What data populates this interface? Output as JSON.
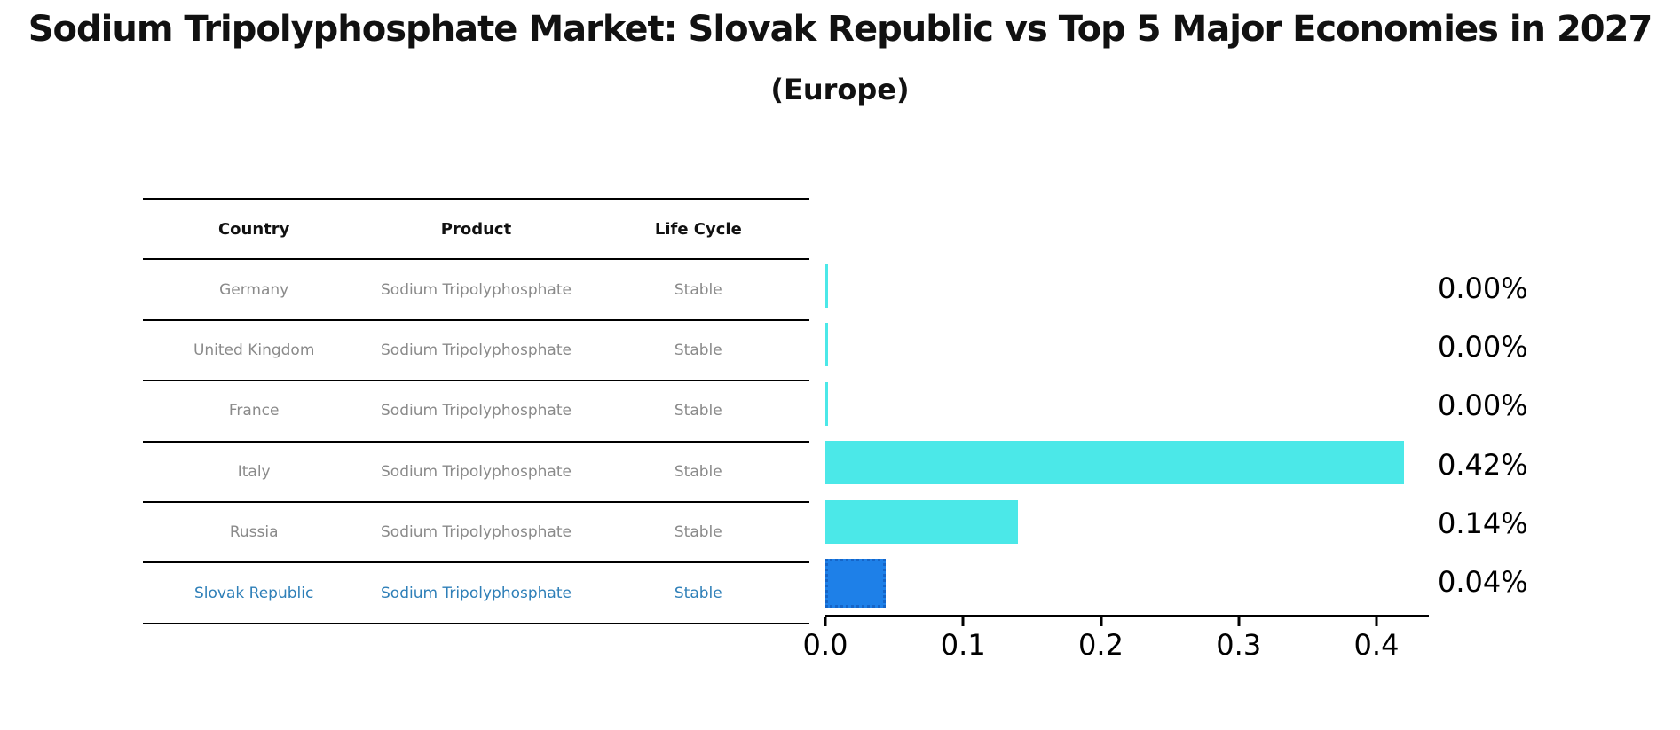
{
  "title": "Sodium Tripolyphosphate Market: Slovak Republic vs Top 5 Major Economies in 2027",
  "subtitle": "(Europe)",
  "table": {
    "headers": [
      "Country",
      "Product",
      "Life Cycle"
    ],
    "rows": [
      {
        "country": "Germany",
        "product": "Sodium Tripolyphosphate",
        "life_cycle": "Stable",
        "highlight": false
      },
      {
        "country": "United Kingdom",
        "product": "Sodium Tripolyphosphate",
        "life_cycle": "Stable",
        "highlight": false
      },
      {
        "country": "France",
        "product": "Sodium Tripolyphosphate",
        "life_cycle": "Stable",
        "highlight": false
      },
      {
        "country": "Italy",
        "product": "Sodium Tripolyphosphate",
        "life_cycle": "Stable",
        "highlight": false
      },
      {
        "country": "Russia",
        "product": "Sodium Tripolyphosphate",
        "life_cycle": "Stable",
        "highlight": false
      },
      {
        "country": "Slovak Republic",
        "product": "Sodium Tripolyphosphate",
        "life_cycle": "Stable",
        "highlight": true
      }
    ]
  },
  "chart_data": {
    "type": "bar",
    "orientation": "horizontal",
    "title": "Sodium Tripolyphosphate Market: Slovak Republic vs Top 5 Major Economies in 2027",
    "subtitle": "(Europe)",
    "categories": [
      "Germany",
      "United Kingdom",
      "France",
      "Italy",
      "Russia",
      "Slovak Republic"
    ],
    "values": [
      0.002,
      0.002,
      0.002,
      0.42,
      0.14,
      0.04
    ],
    "value_labels": [
      "0.00%",
      "0.00%",
      "0.00%",
      "0.42%",
      "0.14%",
      "0.04%"
    ],
    "xlim": [
      0,
      0.438
    ],
    "xtick_values": [
      0.0,
      0.1,
      0.2,
      0.3,
      0.4
    ],
    "xtick_labels": [
      "0.0",
      "0.1",
      "0.2",
      "0.3",
      "0.4"
    ],
    "grid": false,
    "legend": false,
    "highlight_index": 5,
    "colors": {
      "bar": "#4BE8E8",
      "highlight_bar": "#1E80E8",
      "highlight_bar_edge": "#1565C8",
      "highlight_text": "#2E7FB8",
      "row_text": "#8A8A8A",
      "header_text": "#111111",
      "axis": "#000000"
    }
  }
}
